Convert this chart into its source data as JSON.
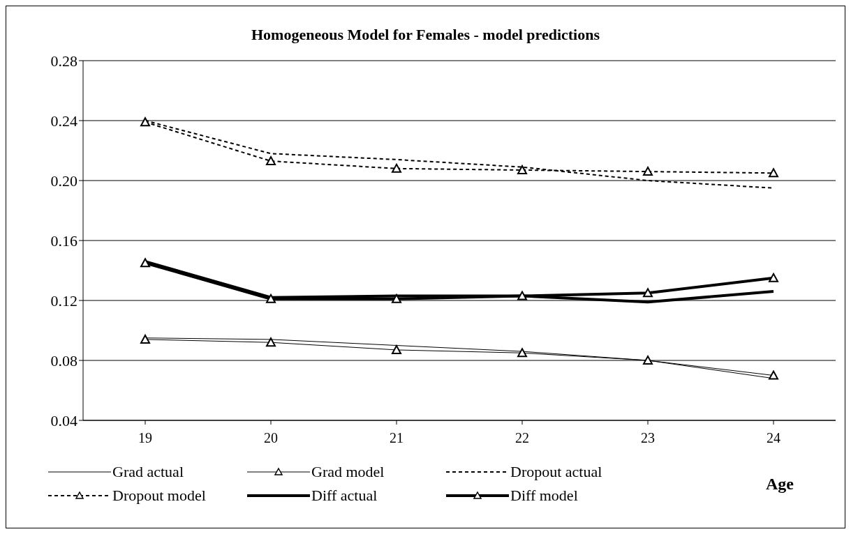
{
  "chart_data": {
    "type": "line",
    "title": "Homogeneous Model for Females - model predictions",
    "xlabel": "Age",
    "categories": [
      "19",
      "20",
      "21",
      "22",
      "23",
      "24"
    ],
    "series": [
      {
        "name": "Grad actual",
        "color": "#000000",
        "line_style": "solid",
        "marker": "none",
        "values": [
          0.095,
          0.094,
          0.09,
          0.086,
          0.08,
          0.068
        ]
      },
      {
        "name": "Grad model",
        "color": "#000000",
        "line_style": "solid",
        "marker": "triangle",
        "values": [
          0.094,
          0.092,
          0.087,
          0.085,
          0.08,
          0.07
        ]
      },
      {
        "name": "Dropout actual",
        "color": "#000000",
        "line_style": "dashed",
        "marker": "none",
        "values": [
          0.24,
          0.218,
          0.214,
          0.209,
          0.2,
          0.195
        ]
      },
      {
        "name": "Dropout model",
        "color": "#000000",
        "line_style": "dashed",
        "marker": "triangle",
        "values": [
          0.239,
          0.213,
          0.208,
          0.207,
          0.206,
          0.205
        ]
      },
      {
        "name": "Diff actual",
        "color": "#000000",
        "line_style": "solid",
        "marker": "none",
        "values": [
          0.146,
          0.122,
          0.123,
          0.123,
          0.119,
          0.126
        ]
      },
      {
        "name": "Diff model",
        "color": "#000000",
        "line_style": "solid",
        "marker": "triangle",
        "values": [
          0.145,
          0.121,
          0.121,
          0.123,
          0.125,
          0.135
        ]
      }
    ],
    "ylim": [
      0.04,
      0.28
    ],
    "yticks": [
      {
        "value": 0.04,
        "label": "0.04"
      },
      {
        "value": 0.08,
        "label": "0.08"
      },
      {
        "value": 0.12,
        "label": "0.12"
      },
      {
        "value": 0.16,
        "label": "0.16"
      },
      {
        "value": 0.2,
        "label": "0.20"
      },
      {
        "value": 0.24,
        "label": "0.24"
      },
      {
        "value": 0.28,
        "label": "0.28"
      }
    ],
    "grid": "y",
    "legend": "bottom"
  }
}
